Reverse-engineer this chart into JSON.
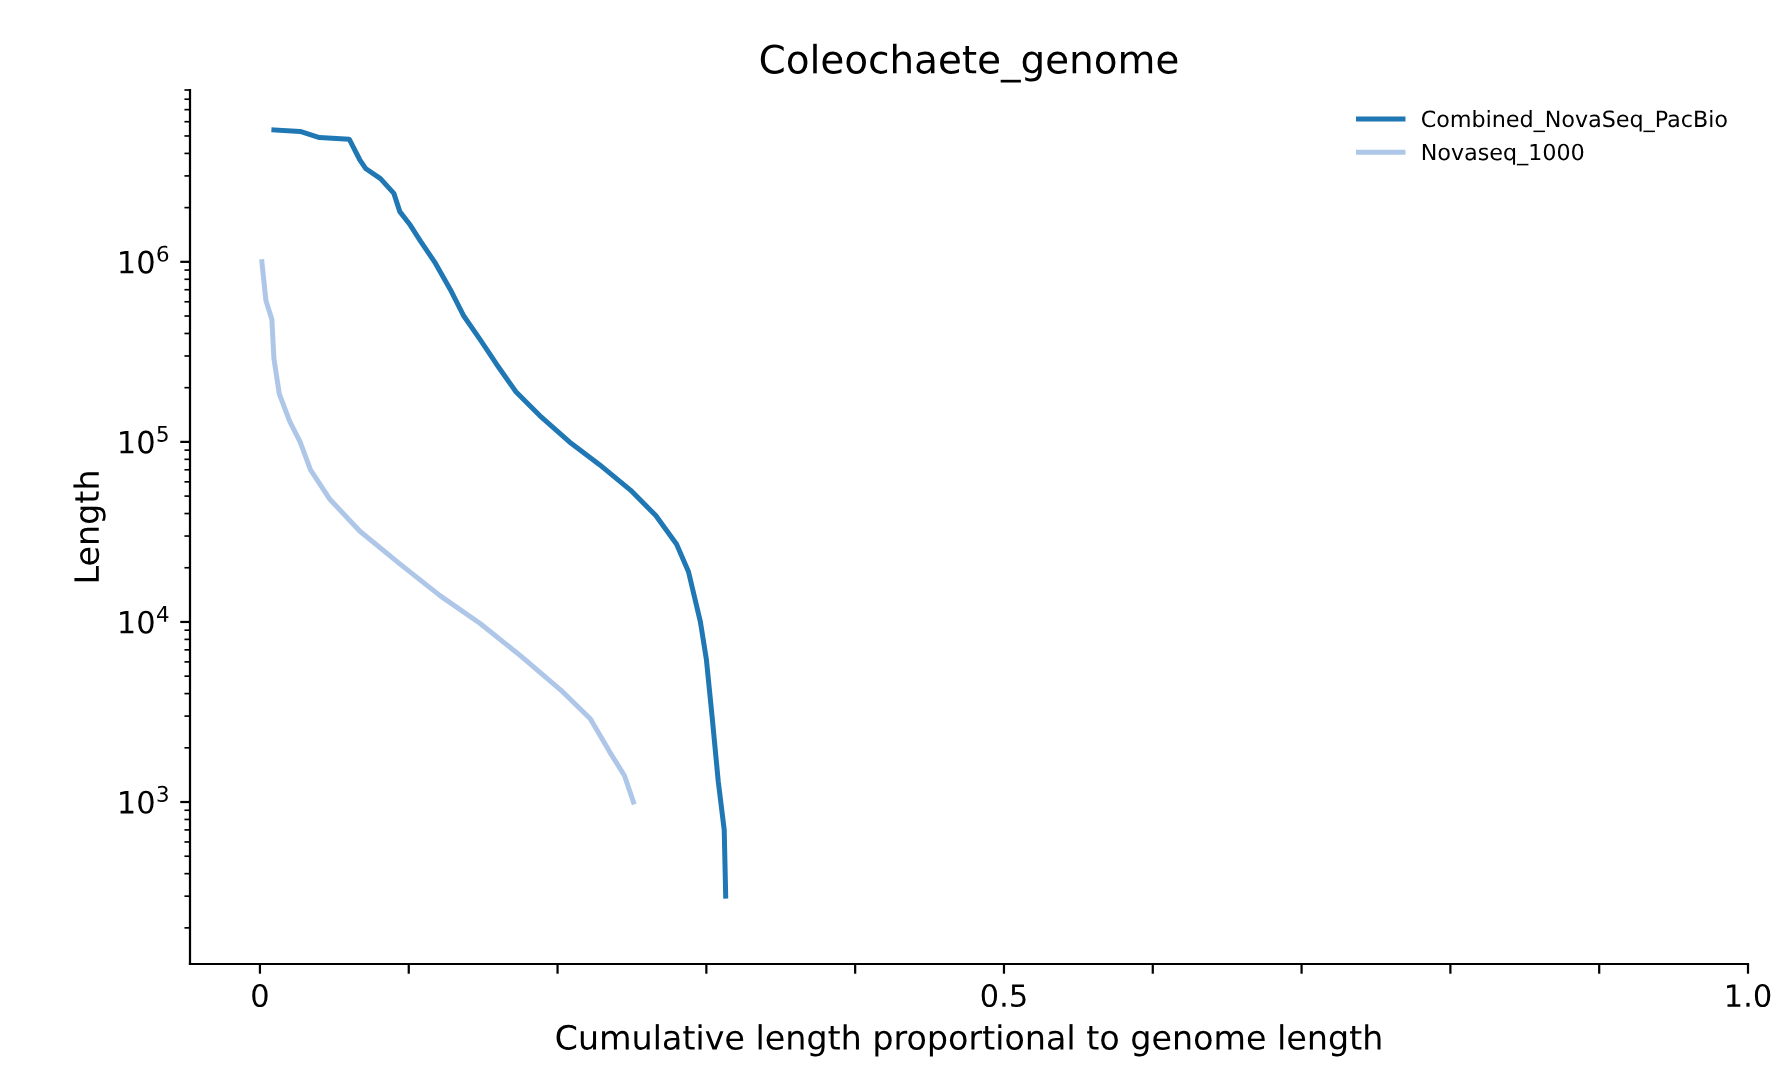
{
  "chart_data": {
    "type": "line",
    "title": "Coleochaete_genome",
    "xlabel": "Cumulative length proportional to genome length",
    "ylabel": "Length",
    "log": "y",
    "grid": false,
    "legend": "top right",
    "xlim": [
      -0.047,
      1.0
    ],
    "xticks": [
      0,
      {
        "value": 0.1,
        "label": null
      },
      {
        "value": 0.2,
        "label": null
      },
      {
        "value": 0.3,
        "label": null
      },
      {
        "value": 0.4,
        "label": null
      },
      0.5,
      {
        "value": 0.6,
        "label": null
      },
      {
        "value": 0.7,
        "label": null
      },
      {
        "value": 0.8,
        "label": null
      },
      {
        "value": 0.9,
        "label": null
      },
      {
        "value": 1.0,
        "label": "1.0"
      }
    ],
    "ylim": [
      126,
      9000000
    ],
    "yticks": [
      {
        "value": 1000,
        "label": "10$^{3}$"
      },
      {
        "value": 10000,
        "label": "10$^{4}$"
      },
      {
        "value": 100000,
        "label": "10$^{5}$"
      },
      {
        "value": 1000000,
        "label": "10$^{6}$"
      }
    ],
    "series": [
      {
        "name": "Combined_NovaSeq_PacBio",
        "color": "#1f77b4",
        "x": [
          0.0094,
          0.027,
          0.04,
          0.06,
          0.067,
          0.071,
          0.081,
          0.09,
          0.094,
          0.101,
          0.108,
          0.118,
          0.128,
          0.137,
          0.148,
          0.159,
          0.172,
          0.188,
          0.208,
          0.228,
          0.249,
          0.266,
          0.28,
          0.288,
          0.296,
          0.3,
          0.304,
          0.308,
          0.312,
          0.313
        ],
        "values": [
          5400000,
          5300000,
          4900000,
          4800000,
          3700000,
          3300000,
          2900000,
          2400000,
          1900000,
          1600000,
          1300000,
          980000,
          700000,
          500000,
          370000,
          270000,
          190000,
          140000,
          100000,
          75000,
          54000,
          39000,
          27000,
          19000,
          10000,
          6200,
          2900,
          1300,
          700,
          300
        ]
      },
      {
        "name": "Novaseq_1000",
        "color": "#aec7e8",
        "x": [
          0.0013,
          0.004,
          0.008,
          0.0094,
          0.013,
          0.02,
          0.027,
          0.034,
          0.047,
          0.067,
          0.094,
          0.121,
          0.148,
          0.175,
          0.202,
          0.222,
          0.235,
          0.245,
          0.251
        ],
        "values": [
          1000000,
          610000,
          480000,
          290000,
          185000,
          130000,
          100000,
          70000,
          48000,
          32000,
          21000,
          14000,
          9800,
          6500,
          4200,
          2900,
          1900,
          1400,
          1000
        ]
      }
    ]
  }
}
